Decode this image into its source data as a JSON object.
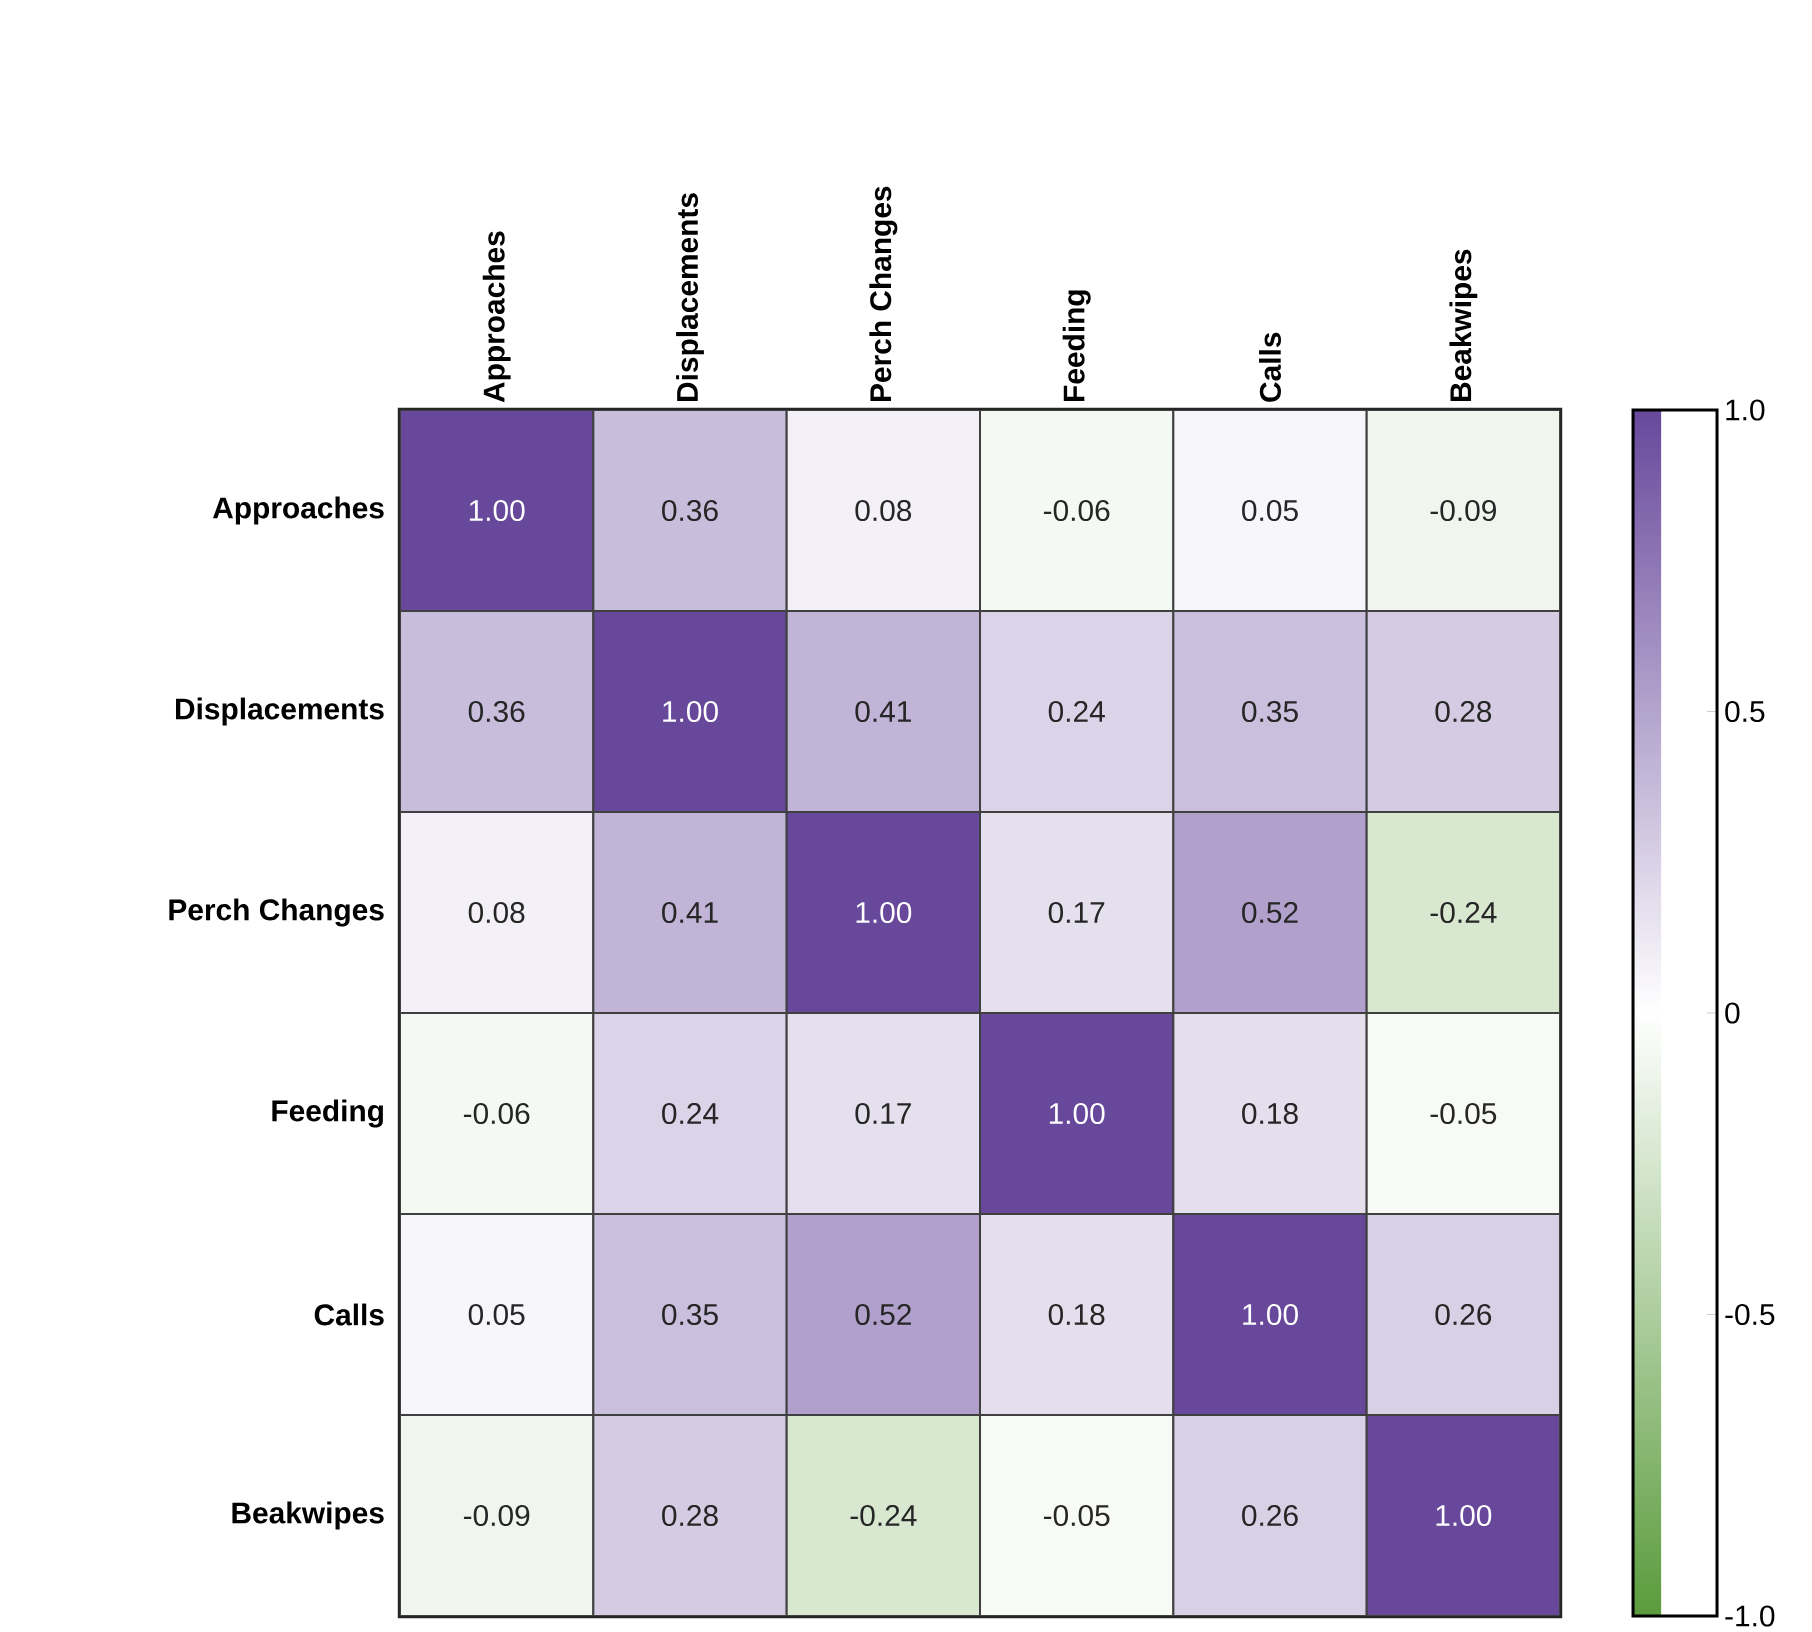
{
  "chart_data": {
    "type": "heatmap",
    "categories": [
      "Approaches",
      "Displacements",
      "Perch Changes",
      "Feeding",
      "Calls",
      "Beakwipes"
    ],
    "y_categories": [
      "Approaches",
      "Displacements",
      "Perch Changes",
      "Feeding",
      "Calls",
      "Beakwipes"
    ],
    "cells": [
      [
        1.0,
        0.36,
        0.08,
        -0.06,
        0.05,
        -0.09
      ],
      [
        0.36,
        1.0,
        0.41,
        0.24,
        0.35,
        0.28
      ],
      [
        0.08,
        0.41,
        1.0,
        0.17,
        0.52,
        -0.24
      ],
      [
        -0.06,
        0.24,
        0.17,
        1.0,
        0.18,
        -0.05
      ],
      [
        0.05,
        0.35,
        0.52,
        0.18,
        1.0,
        0.26
      ],
      [
        -0.09,
        0.28,
        -0.24,
        -0.05,
        0.26,
        1.0
      ]
    ],
    "cell_labels": [
      [
        "1.00",
        "0.36",
        "0.08",
        "-0.06",
        "0.05",
        "-0.09"
      ],
      [
        "0.36",
        "1.00",
        "0.41",
        "0.24",
        "0.35",
        "0.28"
      ],
      [
        "0.08",
        "0.41",
        "1.00",
        "0.17",
        "0.52",
        "-0.24"
      ],
      [
        "-0.06",
        "0.24",
        "0.17",
        "1.00",
        "0.18",
        "-0.05"
      ],
      [
        "0.05",
        "0.35",
        "0.52",
        "0.18",
        "1.00",
        "0.26"
      ],
      [
        "-0.09",
        "0.28",
        "-0.24",
        "-0.05",
        "0.26",
        "1.00"
      ]
    ],
    "clim": [
      -1,
      1
    ],
    "cticks": [
      {
        "value": -1,
        "label": "-1.0"
      },
      {
        "value": -0.5,
        "label": "-0.5"
      },
      {
        "value": 0,
        "label": "0"
      },
      {
        "value": 0.5,
        "label": "0.5"
      },
      {
        "value": 1,
        "label": "1.0"
      }
    ]
  }
}
